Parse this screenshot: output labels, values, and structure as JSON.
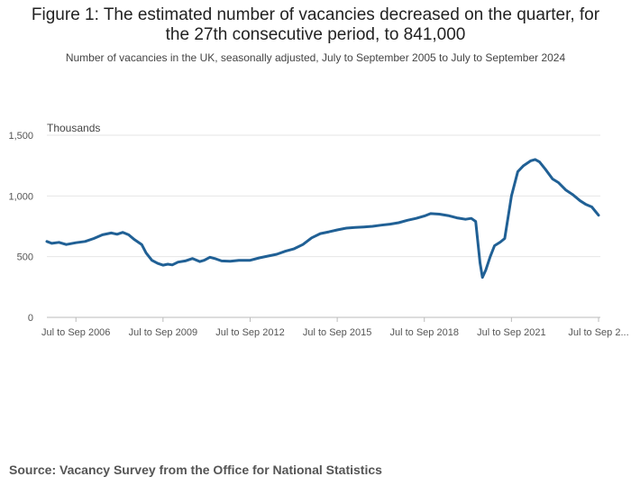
{
  "title": "Figure 1: The estimated number of vacancies decreased on the quarter, for the 27th consecutive period, to 841,000",
  "subtitle": "Number of vacancies in the UK, seasonally adjusted, July to September 2005 to July to September 2024",
  "source": "Source:  Vacancy Survey from the Office for National Statistics",
  "colors": {
    "line": "#206095",
    "grid": "#e6e6e6",
    "axis": "#bbbbbb"
  },
  "chart_data": {
    "type": "line",
    "title": "Figure 1: The estimated number of vacancies decreased on the quarter, for the 27th consecutive period, to 841,000",
    "ylabel": "Thousands",
    "ylim": [
      0,
      1500
    ],
    "yticks": [
      {
        "value": 0,
        "label": "0"
      },
      {
        "value": 500,
        "label": "500"
      },
      {
        "value": 1000,
        "label": "1,000"
      },
      {
        "value": 1500,
        "label": "1,500"
      }
    ],
    "xticks": [
      {
        "value": 2006.583,
        "label": "Jul to Sep 2006"
      },
      {
        "value": 2009.583,
        "label": "Jul to Sep 2009"
      },
      {
        "value": 2012.583,
        "label": "Jul to Sep 2012"
      },
      {
        "value": 2015.583,
        "label": "Jul to Sep 2015"
      },
      {
        "value": 2018.583,
        "label": "Jul to Sep 2018"
      },
      {
        "value": 2021.583,
        "label": "Jul to Sep 2021"
      },
      {
        "value": 2024.583,
        "label": "Jul to Sep 2..."
      }
    ],
    "xlim": [
      2005.583,
      2024.583
    ],
    "grid": true,
    "series": [
      {
        "points": [
          [
            2005.583,
            625
          ],
          [
            2005.75,
            610
          ],
          [
            2006.0,
            618
          ],
          [
            2006.25,
            600
          ],
          [
            2006.583,
            615
          ],
          [
            2006.9,
            625
          ],
          [
            2007.2,
            650
          ],
          [
            2007.5,
            680
          ],
          [
            2007.8,
            695
          ],
          [
            2008.0,
            685
          ],
          [
            2008.2,
            700
          ],
          [
            2008.4,
            680
          ],
          [
            2008.6,
            640
          ],
          [
            2008.85,
            600
          ],
          [
            2009.0,
            530
          ],
          [
            2009.2,
            470
          ],
          [
            2009.4,
            445
          ],
          [
            2009.583,
            430
          ],
          [
            2009.75,
            438
          ],
          [
            2009.9,
            432
          ],
          [
            2010.1,
            455
          ],
          [
            2010.35,
            465
          ],
          [
            2010.6,
            485
          ],
          [
            2010.85,
            460
          ],
          [
            2011.0,
            470
          ],
          [
            2011.2,
            495
          ],
          [
            2011.4,
            482
          ],
          [
            2011.6,
            465
          ],
          [
            2011.9,
            462
          ],
          [
            2012.2,
            470
          ],
          [
            2012.583,
            470
          ],
          [
            2012.9,
            490
          ],
          [
            2013.2,
            505
          ],
          [
            2013.5,
            520
          ],
          [
            2013.8,
            545
          ],
          [
            2014.1,
            565
          ],
          [
            2014.4,
            600
          ],
          [
            2014.7,
            655
          ],
          [
            2015.0,
            690
          ],
          [
            2015.3,
            705
          ],
          [
            2015.583,
            720
          ],
          [
            2015.9,
            735
          ],
          [
            2016.2,
            740
          ],
          [
            2016.5,
            745
          ],
          [
            2016.8,
            750
          ],
          [
            2017.1,
            760
          ],
          [
            2017.4,
            768
          ],
          [
            2017.7,
            780
          ],
          [
            2018.0,
            800
          ],
          [
            2018.3,
            815
          ],
          [
            2018.583,
            835
          ],
          [
            2018.8,
            855
          ],
          [
            2019.1,
            850
          ],
          [
            2019.4,
            838
          ],
          [
            2019.7,
            820
          ],
          [
            2020.0,
            808
          ],
          [
            2020.2,
            815
          ],
          [
            2020.35,
            790
          ],
          [
            2020.5,
            450
          ],
          [
            2020.583,
            330
          ],
          [
            2020.7,
            390
          ],
          [
            2020.85,
            500
          ],
          [
            2021.0,
            590
          ],
          [
            2021.2,
            620
          ],
          [
            2021.35,
            650
          ],
          [
            2021.583,
            1000
          ],
          [
            2021.8,
            1200
          ],
          [
            2022.0,
            1250
          ],
          [
            2022.25,
            1290
          ],
          [
            2022.4,
            1300
          ],
          [
            2022.55,
            1280
          ],
          [
            2022.75,
            1220
          ],
          [
            2023.0,
            1140
          ],
          [
            2023.2,
            1110
          ],
          [
            2023.45,
            1050
          ],
          [
            2023.7,
            1010
          ],
          [
            2023.95,
            960
          ],
          [
            2024.15,
            930
          ],
          [
            2024.35,
            910
          ],
          [
            2024.583,
            841
          ]
        ]
      }
    ]
  }
}
